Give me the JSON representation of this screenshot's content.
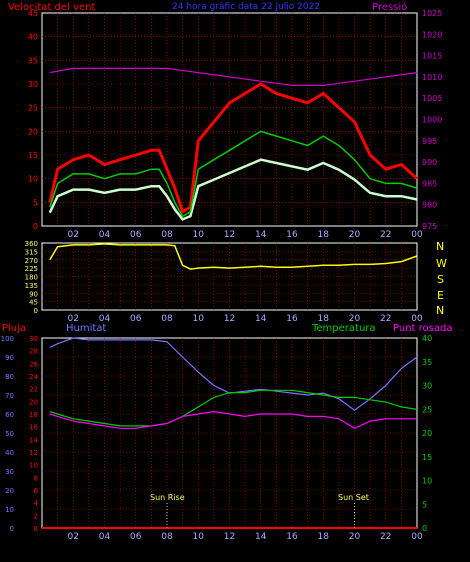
{
  "header": {
    "wind_speed_label": "Velocitat del vent",
    "title": "24 hora gràfic data   22 Julio 2022",
    "pressure_label": "Pressió"
  },
  "direction_letters": [
    "N",
    "W",
    "S",
    "E",
    "N"
  ],
  "bottom_header": {
    "rain_label": "Pluja",
    "humidity_label": "Humitat",
    "temperature_label": "Temperatura",
    "dewpoint_label": "Punt rosada"
  },
  "markers": {
    "sunrise": "Sun Rise",
    "sunset": "Sun Set"
  },
  "colors": {
    "wind_gust": "#ff0000",
    "wind_avg": "#00cc00",
    "wind_light": "#ccffcc",
    "pressure": "#cc00cc",
    "direction": "#ffff00",
    "humidity": "#7777ff",
    "temperature": "#00cc00",
    "dewpoint": "#ff00ff",
    "rain": "#ff0000",
    "grid": "#cc0000"
  },
  "chart_data": [
    {
      "type": "line",
      "x_ticks": [
        "02",
        "04",
        "06",
        "08",
        "10",
        "12",
        "14",
        "16",
        "18",
        "20",
        "22",
        "00"
      ],
      "y_left": {
        "label": "Velocitat del vent",
        "ylim": [
          0,
          45
        ],
        "ticks": [
          0,
          5,
          10,
          15,
          20,
          25,
          30,
          35,
          40,
          45
        ]
      },
      "y_right": {
        "label": "Pressió",
        "ylim": [
          975,
          1025
        ],
        "ticks": [
          975,
          980,
          985,
          990,
          995,
          1000,
          1005,
          1010,
          1015,
          1020,
          1025
        ]
      },
      "grid": true,
      "series": [
        {
          "name": "gust",
          "axis": "left",
          "x": [
            0.5,
            1,
            2,
            3,
            4,
            5,
            6,
            7,
            7.5,
            8,
            8.5,
            9,
            9.5,
            10,
            11,
            12,
            13,
            14,
            15,
            16,
            17,
            18,
            19,
            20,
            21,
            22,
            23,
            24
          ],
          "values": [
            5,
            12,
            14,
            15,
            13,
            14,
            15,
            16,
            16,
            12,
            8,
            3,
            4,
            18,
            22,
            26,
            28,
            30,
            28,
            27,
            26,
            28,
            25,
            22,
            15,
            12,
            13,
            10
          ]
        },
        {
          "name": "average",
          "axis": "left",
          "x": [
            0.5,
            1,
            2,
            3,
            4,
            5,
            6,
            7,
            7.5,
            8,
            8.5,
            9,
            9.5,
            10,
            11,
            12,
            13,
            14,
            15,
            16,
            17,
            18,
            19,
            20,
            21,
            22,
            23,
            24
          ],
          "values": [
            4,
            9,
            11,
            11,
            10,
            11,
            11,
            12,
            12,
            9,
            5,
            2,
            3,
            12,
            14,
            16,
            18,
            20,
            19,
            18,
            17,
            19,
            17,
            14,
            10,
            9,
            9,
            8
          ]
        },
        {
          "name": "pressure",
          "axis": "right",
          "x": [
            0.5,
            2,
            4,
            6,
            8,
            10,
            12,
            14,
            16,
            18,
            20,
            22,
            24
          ],
          "values": [
            1011,
            1012,
            1012,
            1012,
            1012,
            1011,
            1010,
            1009,
            1008,
            1008,
            1009,
            1010,
            1011
          ]
        }
      ]
    },
    {
      "type": "line",
      "x_ticks": [
        "02",
        "04",
        "06",
        "08",
        "10",
        "12",
        "14",
        "16",
        "18",
        "20",
        "22",
        "00"
      ],
      "y_left": {
        "ylim": [
          0,
          360
        ],
        "ticks": [
          0,
          45,
          90,
          135,
          180,
          225,
          270,
          315,
          360
        ]
      },
      "grid": true,
      "series": [
        {
          "name": "direction",
          "x": [
            0.5,
            1,
            2,
            3,
            4,
            5,
            6,
            7,
            8,
            8.5,
            9,
            9.5,
            10,
            11,
            12,
            13,
            14,
            15,
            16,
            17,
            18,
            19,
            20,
            21,
            22,
            23,
            24
          ],
          "values": [
            270,
            340,
            350,
            350,
            355,
            350,
            350,
            350,
            350,
            345,
            240,
            220,
            225,
            230,
            225,
            230,
            235,
            230,
            230,
            235,
            240,
            240,
            245,
            245,
            250,
            260,
            290
          ]
        }
      ]
    },
    {
      "type": "line",
      "x_ticks": [
        "02",
        "04",
        "06",
        "08",
        "10",
        "12",
        "14",
        "16",
        "18",
        "20",
        "22",
        "00"
      ],
      "y_rain": {
        "label": "Pluja",
        "ylim": [
          0,
          30
        ],
        "ticks": [
          0,
          2,
          4,
          6,
          8,
          10,
          12,
          14,
          16,
          18,
          20,
          22,
          24,
          26,
          28,
          30
        ]
      },
      "y_humidity": {
        "label": "Humitat",
        "ylim": [
          0,
          100
        ],
        "ticks": [
          0,
          10,
          20,
          30,
          40,
          50,
          60,
          70,
          80,
          90,
          100
        ]
      },
      "y_temperature": {
        "label": "Temperatura",
        "ylim": [
          0,
          40
        ],
        "ticks": [
          0,
          5,
          10,
          15,
          20,
          25,
          30,
          35,
          40
        ]
      },
      "grid": true,
      "series": [
        {
          "name": "humidity",
          "axis": "humidity",
          "x": [
            0.5,
            1,
            2,
            3,
            4,
            5,
            6,
            7,
            8,
            9,
            10,
            11,
            12,
            13,
            14,
            15,
            16,
            17,
            18,
            19,
            20,
            21,
            22,
            23,
            24
          ],
          "values": [
            95,
            97,
            100,
            99,
            99,
            99,
            99,
            99,
            98,
            90,
            82,
            75,
            71,
            72,
            73,
            72,
            71,
            70,
            71,
            68,
            62,
            68,
            75,
            84,
            90
          ]
        },
        {
          "name": "temperature",
          "axis": "temperature",
          "x": [
            0.5,
            1,
            2,
            3,
            4,
            5,
            6,
            7,
            8,
            9,
            10,
            11,
            12,
            13,
            14,
            15,
            16,
            17,
            18,
            19,
            20,
            21,
            22,
            23,
            24
          ],
          "values": [
            24.5,
            24,
            23,
            22.5,
            22,
            21.5,
            21.5,
            21.5,
            22,
            23.5,
            25.5,
            27.5,
            28.5,
            28.5,
            29,
            29,
            29,
            28.5,
            28,
            27.5,
            27.5,
            27,
            26.5,
            25.5,
            25
          ]
        },
        {
          "name": "dewpoint",
          "axis": "temperature",
          "x": [
            0.5,
            1,
            2,
            3,
            4,
            5,
            6,
            7,
            8,
            9,
            10,
            11,
            12,
            13,
            14,
            15,
            16,
            17,
            18,
            19,
            20,
            21,
            22,
            23,
            24
          ],
          "values": [
            24,
            23.5,
            22.5,
            22,
            21.5,
            21,
            21,
            21.5,
            22,
            23.5,
            24,
            24.5,
            24,
            23.5,
            24,
            24,
            24,
            23.5,
            23.5,
            23,
            21,
            22.5,
            23,
            23,
            23
          ]
        },
        {
          "name": "rain",
          "axis": "rain",
          "x": [
            0,
            24
          ],
          "values": [
            0,
            0
          ]
        }
      ],
      "annotations": [
        {
          "x": 8,
          "text": "Sun Rise"
        },
        {
          "x": 20,
          "text": "Sun Set"
        }
      ]
    }
  ]
}
